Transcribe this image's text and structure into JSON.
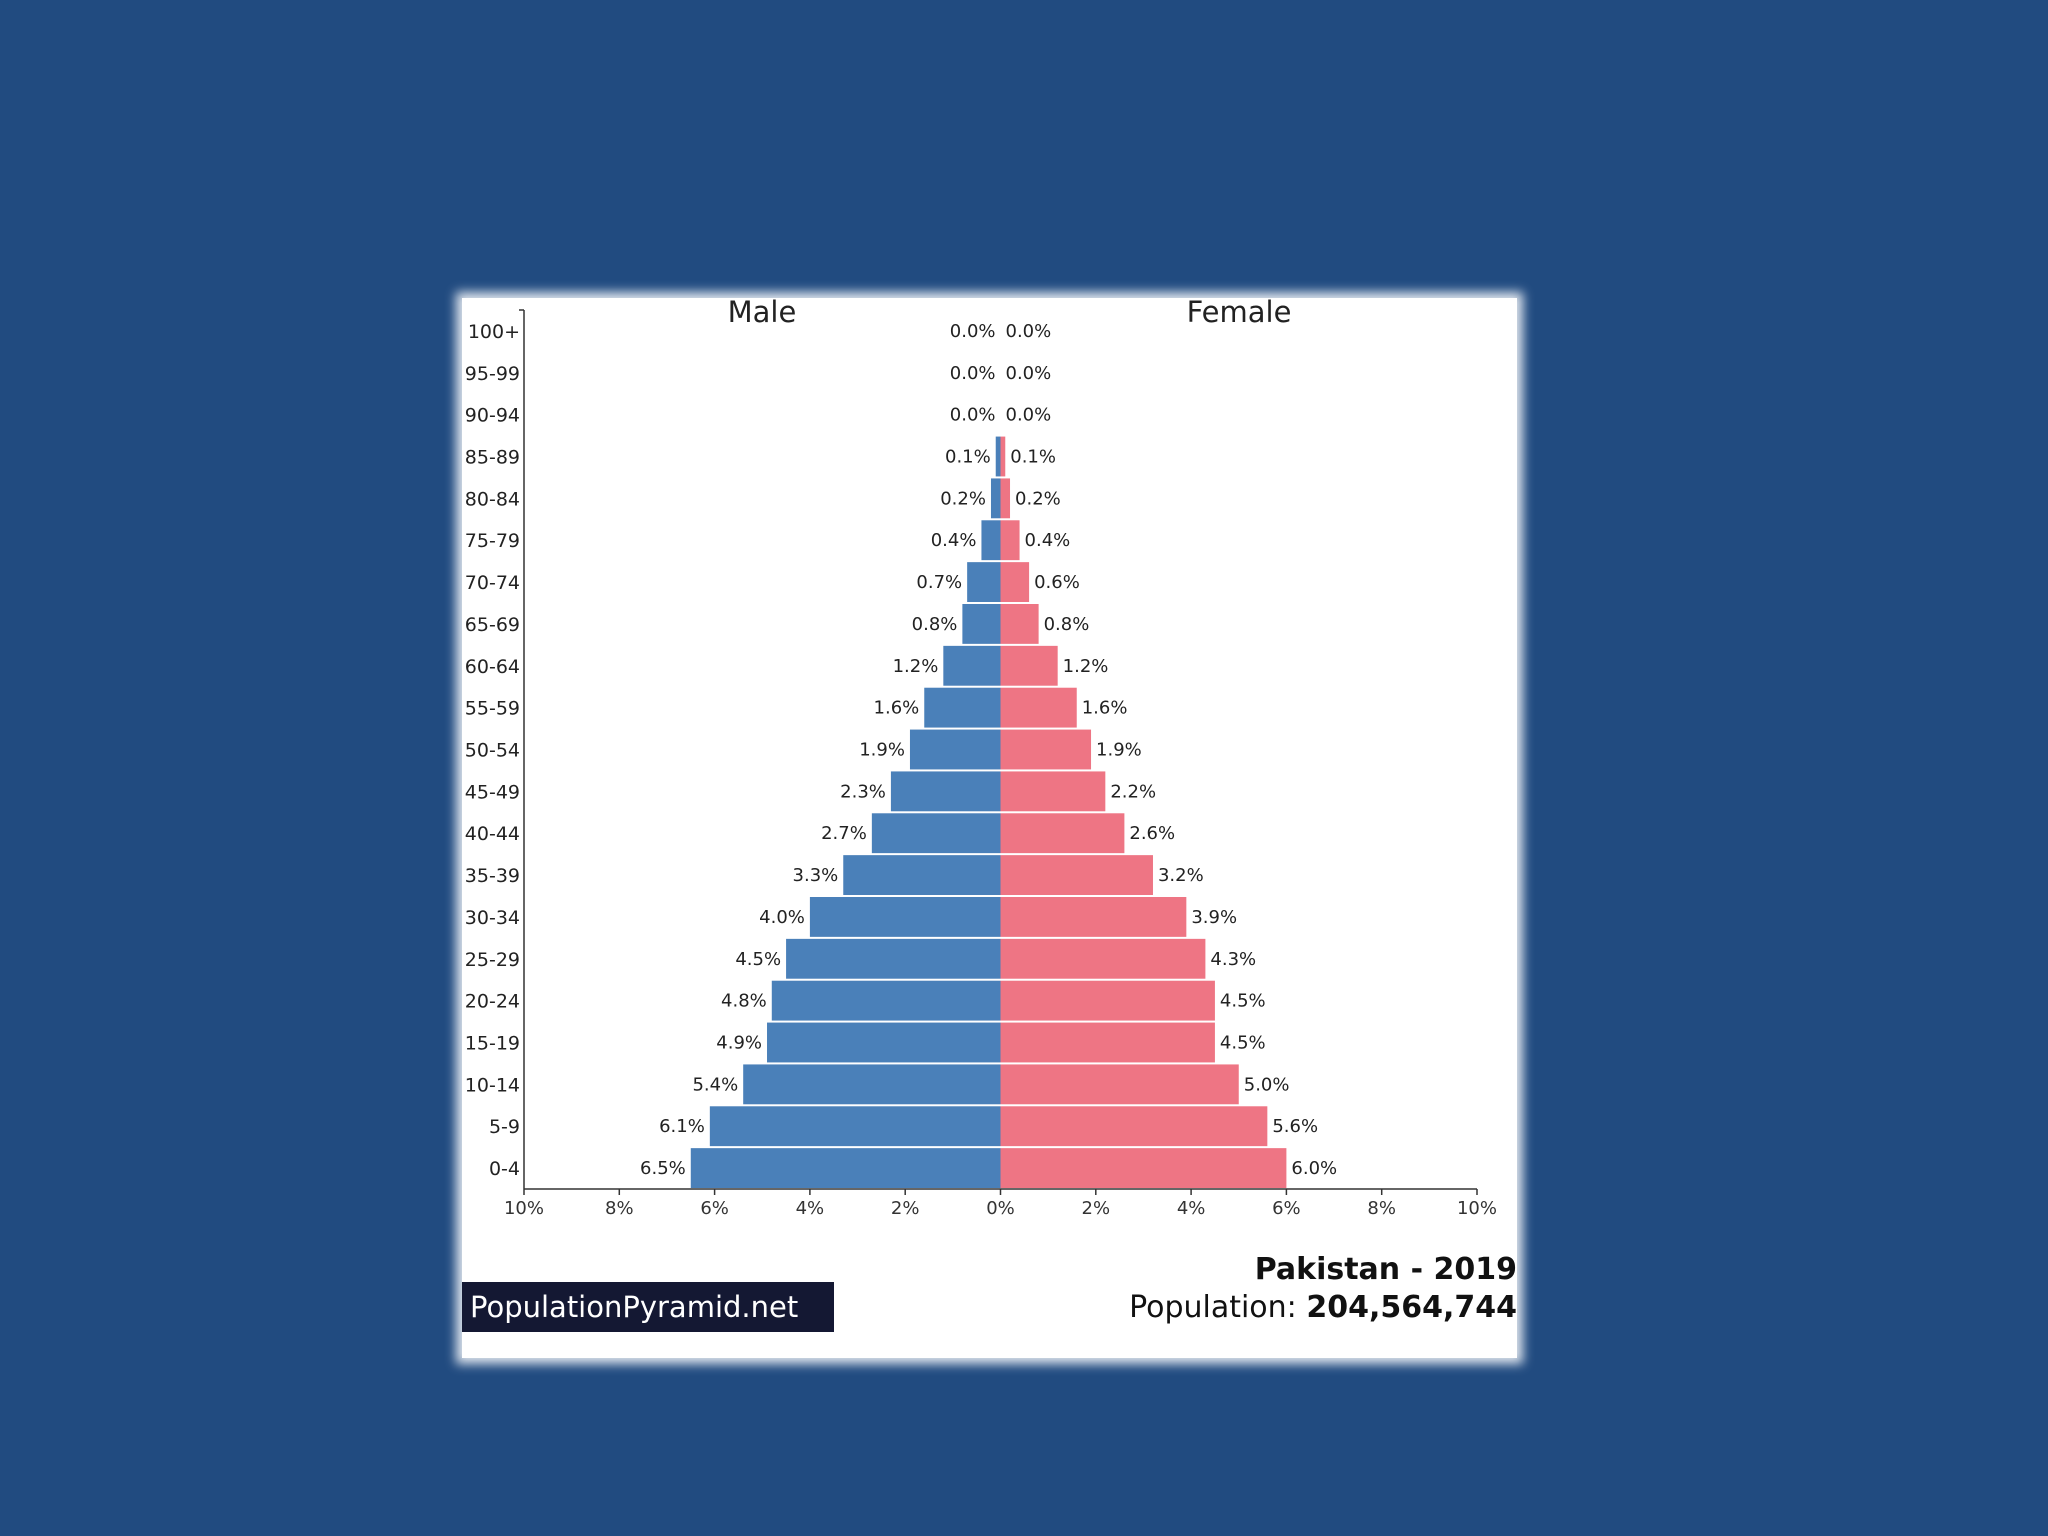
{
  "chart_data": {
    "type": "bar",
    "subtype": "population-pyramid",
    "categories": [
      "100+",
      "95-99",
      "90-94",
      "85-89",
      "80-84",
      "75-79",
      "70-74",
      "65-69",
      "60-64",
      "55-59",
      "50-54",
      "45-49",
      "40-44",
      "35-39",
      "30-34",
      "25-29",
      "20-24",
      "15-19",
      "10-14",
      "5-9",
      "0-4"
    ],
    "series": [
      {
        "name": "Male",
        "color": "#4a80b9",
        "values": [
          0.0,
          0.0,
          0.0,
          0.1,
          0.2,
          0.4,
          0.7,
          0.8,
          1.2,
          1.6,
          1.9,
          2.3,
          2.7,
          3.3,
          4.0,
          4.5,
          4.8,
          4.9,
          5.4,
          6.1,
          6.5
        ],
        "labels": [
          "0.0%",
          "0.0%",
          "0.0%",
          "0.1%",
          "0.2%",
          "0.4%",
          "0.7%",
          "0.8%",
          "1.2%",
          "1.6%",
          "1.9%",
          "2.3%",
          "2.7%",
          "3.3%",
          "4.0%",
          "4.5%",
          "4.8%",
          "4.9%",
          "5.4%",
          "6.1%",
          "6.5%"
        ]
      },
      {
        "name": "Female",
        "color": "#ee7584",
        "values": [
          0.0,
          0.0,
          0.0,
          0.1,
          0.2,
          0.4,
          0.6,
          0.8,
          1.2,
          1.6,
          1.9,
          2.2,
          2.6,
          3.2,
          3.9,
          4.3,
          4.5,
          4.5,
          5.0,
          5.6,
          6.0
        ],
        "labels": [
          "0.0%",
          "0.0%",
          "0.0%",
          "0.1%",
          "0.2%",
          "0.4%",
          "0.6%",
          "0.8%",
          "1.2%",
          "1.6%",
          "1.9%",
          "2.2%",
          "2.6%",
          "3.2%",
          "3.9%",
          "4.3%",
          "4.5%",
          "4.5%",
          "5.0%",
          "5.6%",
          "6.0%"
        ]
      }
    ],
    "x_ticks": [
      "10%",
      "8%",
      "6%",
      "4%",
      "2%",
      "0%",
      "2%",
      "4%",
      "6%",
      "8%",
      "10%"
    ],
    "xlim": [
      -10,
      10
    ],
    "grid": false,
    "legend_position": "top"
  },
  "branding": {
    "site": "PopulationPyramid.net"
  },
  "caption": {
    "title": "Pakistan - 2019",
    "population_label": "Population: ",
    "population_value": "204,564,744"
  },
  "colors": {
    "background": "#214b80",
    "male": "#4a80b9",
    "female": "#ee7584"
  }
}
